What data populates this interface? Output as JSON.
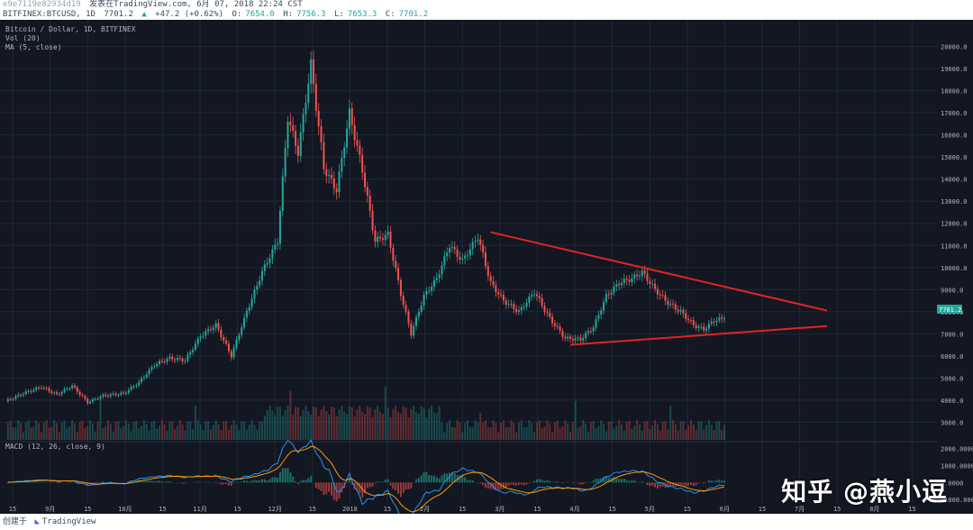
{
  "header": {
    "user_id": "e9e7119e82934d19",
    "published_on": "发表在TradingView.com, 6月 07, 2018 22:24 CST",
    "symbol": "BITFINEX:BTCUSD, 1D",
    "last": "7701.2",
    "change": "+47.2 (+0.62%)",
    "o_label": "O:",
    "o_value": "7654.0",
    "h_label": "H:",
    "h_value": "7756.3",
    "l_label": "L:",
    "l_value": "7653.3",
    "c_label": "C:",
    "c_value": "7701.2"
  },
  "legend": {
    "line1": "Bitcoin / Dollar, 1D, BITFINEX",
    "line2": "Vol (20)",
    "line3": "MA (5, close)",
    "macd_label": "MACD (12, 26, close, 9)"
  },
  "price_tag": "7701.2",
  "footer": {
    "created_with": "创建于",
    "brand": "TradingView"
  },
  "watermark": "知乎 @燕小逗",
  "colors": {
    "up": "#26a69a",
    "down": "#ef5350",
    "trendline": "#e02424",
    "background": "#131722",
    "grid": "#1f2937"
  },
  "chart_data": {
    "type": "candlestick",
    "title": "Bitcoin / Dollar, 1D, BITFINEX",
    "price_ticks": [
      3000,
      4000,
      5000,
      6000,
      7000,
      8000,
      9000,
      10000,
      11000,
      12000,
      13000,
      14000,
      15000,
      16000,
      17000,
      18000,
      19000,
      20000
    ],
    "price_tick_labels": [
      "3000.0",
      "4000.0",
      "5000.0",
      "6000.0",
      "7000.0",
      "8000.0",
      "9000.0",
      "10000.0",
      "11000.0",
      "12000.0",
      "13000.0",
      "14000.0",
      "15000.0",
      "16000.0",
      "17000.0",
      "18000.0",
      "19000.0",
      "20000.0"
    ],
    "macd_ticks": [
      2000,
      1000,
      0,
      -1000
    ],
    "macd_tick_labels": [
      "2000.0000",
      "1000.0000",
      "0.0000",
      "-1000.0000"
    ],
    "macd_range": [
      -1200,
      2300
    ],
    "x_ticks": [
      "15",
      "9月",
      "15",
      "10月",
      "15",
      "11月",
      "15",
      "12月",
      "15",
      "2018",
      "15",
      "2月",
      "15",
      "3月",
      "15",
      "4月",
      "15",
      "5月",
      "15",
      "6月",
      "15",
      "7月",
      "15",
      "8月",
      "15"
    ],
    "price_range": [
      2200,
      20800
    ],
    "path": [
      {
        "i": 0,
        "p": 3950
      },
      {
        "i": 8,
        "p": 4350
      },
      {
        "i": 14,
        "p": 4600
      },
      {
        "i": 20,
        "p": 4250
      },
      {
        "i": 26,
        "p": 4650
      },
      {
        "i": 32,
        "p": 3900
      },
      {
        "i": 38,
        "p": 4200
      },
      {
        "i": 46,
        "p": 4300
      },
      {
        "i": 52,
        "p": 4800
      },
      {
        "i": 58,
        "p": 5600
      },
      {
        "i": 64,
        "p": 5900
      },
      {
        "i": 70,
        "p": 5800
      },
      {
        "i": 76,
        "p": 6900
      },
      {
        "i": 82,
        "p": 7400
      },
      {
        "i": 88,
        "p": 6000
      },
      {
        "i": 94,
        "p": 8000
      },
      {
        "i": 100,
        "p": 9800
      },
      {
        "i": 106,
        "p": 11200
      },
      {
        "i": 110,
        "p": 16800
      },
      {
        "i": 114,
        "p": 15200
      },
      {
        "i": 119,
        "p": 19200
      },
      {
        "i": 124,
        "p": 14500
      },
      {
        "i": 129,
        "p": 13500
      },
      {
        "i": 134,
        "p": 17000
      },
      {
        "i": 139,
        "p": 14400
      },
      {
        "i": 144,
        "p": 11200
      },
      {
        "i": 149,
        "p": 11500
      },
      {
        "i": 154,
        "p": 8800
      },
      {
        "i": 158,
        "p": 7000
      },
      {
        "i": 163,
        "p": 8700
      },
      {
        "i": 168,
        "p": 9500
      },
      {
        "i": 173,
        "p": 11000
      },
      {
        "i": 178,
        "p": 10300
      },
      {
        "i": 184,
        "p": 11400
      },
      {
        "i": 189,
        "p": 9300
      },
      {
        "i": 194,
        "p": 8500
      },
      {
        "i": 200,
        "p": 8000
      },
      {
        "i": 206,
        "p": 8900
      },
      {
        "i": 212,
        "p": 7700
      },
      {
        "i": 218,
        "p": 6800
      },
      {
        "i": 224,
        "p": 6750
      },
      {
        "i": 229,
        "p": 7300
      },
      {
        "i": 234,
        "p": 8700
      },
      {
        "i": 239,
        "p": 9300
      },
      {
        "i": 244,
        "p": 9500
      },
      {
        "i": 248,
        "p": 9800
      },
      {
        "i": 253,
        "p": 9000
      },
      {
        "i": 258,
        "p": 8400
      },
      {
        "i": 263,
        "p": 8000
      },
      {
        "i": 268,
        "p": 7400
      },
      {
        "i": 272,
        "p": 7200
      },
      {
        "i": 276,
        "p": 7600
      },
      {
        "i": 280,
        "p": 7700
      }
    ],
    "trendlines": [
      {
        "from": {
          "i": 189,
          "p": 11600
        },
        "to": {
          "i": 320,
          "p": 8050
        }
      },
      {
        "from": {
          "i": 220,
          "p": 6500
        },
        "to": {
          "i": 320,
          "p": 7350
        }
      }
    ]
  }
}
